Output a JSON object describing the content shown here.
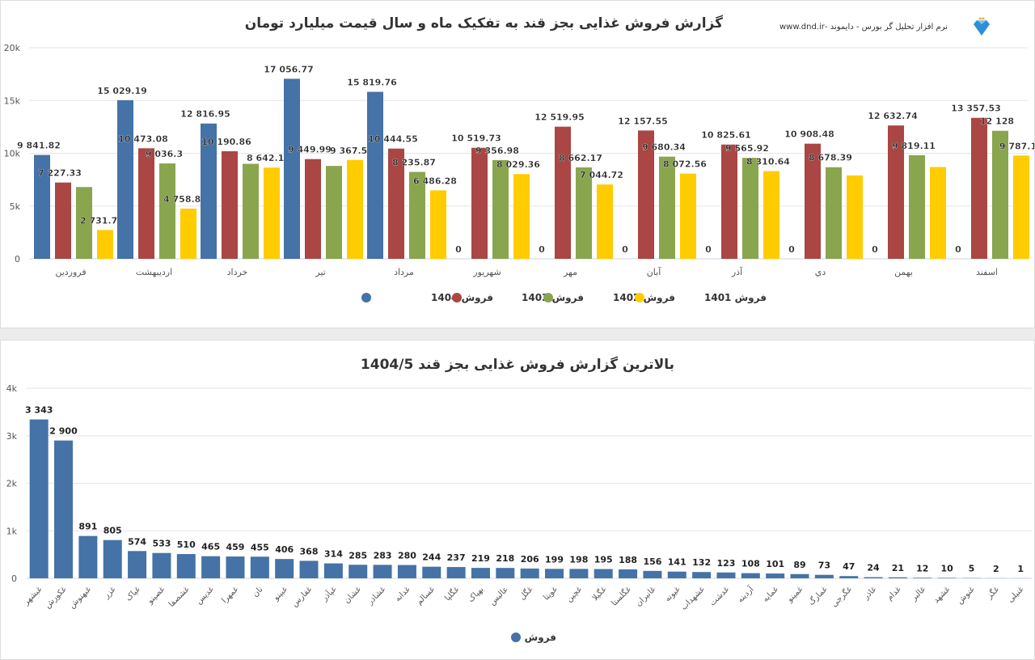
{
  "header": {
    "title": "گزارش فروش غذایی بجز قند به تفکیک ماه و سال قیمت میلیارد تومان",
    "brand": "نرم افزار تحلیل گر بورس - دایموند -www.dnd.ir"
  },
  "chart_data": [
    {
      "type": "bar",
      "title": "گزارش فروش غذایی بجز قند به تفکیک ماه و سال قیمت میلیارد تومان",
      "categories": [
        "فروردین",
        "اردیبهشت",
        "خرداد",
        "تیر",
        "مرداد",
        "شهریور",
        "مهر",
        "آبان",
        "آذر",
        "دي",
        "بهمن",
        "اسفند"
      ],
      "yticks": [
        "0",
        "5k",
        "10k",
        "15k",
        "20k"
      ],
      "ylim": [
        0,
        20000
      ],
      "grid": true,
      "legend": "bottom",
      "series": [
        {
          "name": "فروش 1404",
          "color": "#4572a7",
          "values": [
            9841.82,
            15029.19,
            12816.95,
            17056.77,
            15819.76,
            0,
            0,
            0,
            0,
            0,
            0,
            0
          ],
          "labels": [
            "9 841.82",
            "15 029.19",
            "12 816.95",
            "17 056.77",
            "15 819.76",
            "0",
            "0",
            "0",
            "0",
            "0",
            "0",
            "0"
          ]
        },
        {
          "name": "فروش 1403",
          "color": "#aa4643",
          "values": [
            7227.33,
            10473.08,
            10190.86,
            9449.99,
            10444.55,
            10519.73,
            12519.95,
            12157.55,
            10825.61,
            10908.48,
            12632.74,
            13357.53
          ],
          "labels": [
            "7 227.33",
            "10 473.08",
            "10 190.86",
            "9 449.99",
            "10 444.55",
            "10 519.73",
            "12 519.95",
            "12 157.55",
            "10 825.61",
            "10 908.48",
            "12 632.74",
            "13 357.53"
          ]
        },
        {
          "name": "فروش 1402",
          "color": "#89a54e",
          "values": [
            6800,
            9036.3,
            9000,
            8800,
            8235.87,
            9356.98,
            8662.17,
            9680.34,
            9565.92,
            8678.39,
            9819.11,
            12128
          ],
          "labels": [
            "",
            "9 036.3",
            "",
            "",
            "8 235.87",
            "9 356.98",
            "8 662.17",
            "9 680.34",
            "9 565.92",
            "8 678.39",
            "9 819.11",
            "12 128"
          ]
        },
        {
          "name": "فروش 1401",
          "color": "#ffcc00",
          "values": [
            2731.73,
            4758.85,
            8642.14,
            9367.54,
            6486.28,
            8029.36,
            7044.72,
            8072.56,
            8310.64,
            7900,
            8700,
            9787.1
          ],
          "labels": [
            "2 731.73",
            "4 758.85",
            "8 642.14",
            "9 367.54",
            "6 486.28",
            "8 029.36",
            "7 044.72",
            "8 072.56",
            "8 310.64",
            "",
            "",
            "9 787.1"
          ]
        }
      ]
    },
    {
      "type": "bar",
      "title": "بالاترین گزارش فروش غذایی بجز قند 1404/5",
      "categories": [
        "غبشهر",
        "غکورش",
        "غبهنوش",
        "غزر",
        "غپاک",
        "غصینو",
        "غشصفا",
        "غدیس",
        "غمهرا",
        "نان",
        "غبینو",
        "غفارس",
        "غپآذر",
        "غشان",
        "غشاذر",
        "غدانه",
        "غسالم",
        "غگلپا",
        "بهپاک",
        "عالیس",
        "غگل",
        "غویتا",
        "غچین",
        "غگیلا",
        "غگلستا",
        "غانیران",
        "غیونه",
        "غشهداب",
        "غدشت",
        "آردینه",
        "غمایه",
        "غمینو",
        "غمارگ",
        "غگرجی",
        "غاذر",
        "غدام",
        "غالبر",
        "غشهد",
        "غنوش",
        "غگز",
        "غنیلی"
      ],
      "values": [
        3343,
        2900,
        891,
        805,
        574,
        533,
        510,
        465,
        459,
        455,
        406,
        368,
        314,
        285,
        283,
        280,
        244,
        237,
        219,
        218,
        206,
        199,
        198,
        195,
        188,
        156,
        141,
        132,
        123,
        108,
        101,
        89,
        73,
        47,
        24,
        21,
        12,
        10,
        5,
        2,
        1
      ],
      "labels": [
        "3 343",
        "2 900",
        "891",
        "805",
        "574",
        "533",
        "510",
        "465",
        "459",
        "455",
        "406",
        "368",
        "314",
        "285",
        "283",
        "280",
        "244",
        "237",
        "219",
        "218",
        "206",
        "199",
        "198",
        "195",
        "188",
        "156",
        "141",
        "132",
        "123",
        "108",
        "101",
        "89",
        "73",
        "47",
        "24",
        "21",
        "12",
        "10",
        "5",
        "2",
        "1"
      ],
      "yticks": [
        "0",
        "1k",
        "2k",
        "3k",
        "4k"
      ],
      "ylim": [
        0,
        4000
      ],
      "grid": true,
      "legend": "bottom",
      "series_name": "فروش",
      "color": "#4572a7"
    }
  ]
}
